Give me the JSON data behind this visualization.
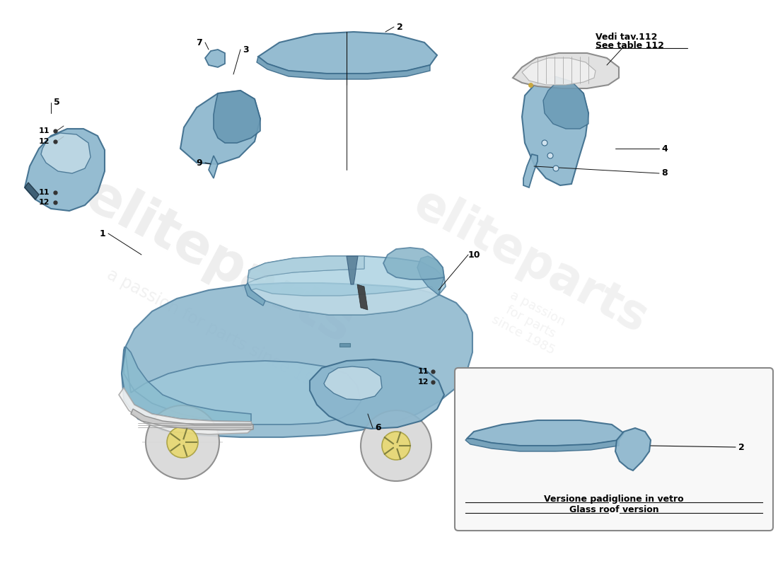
{
  "bg_color": "#ffffff",
  "part_color": "#8ab5cc",
  "part_edge_color": "#3a6a8a",
  "car_body_color": "#8ab5cc",
  "car_body_edge": "#4a7a9a",
  "car_window_color": "#c8dde8",
  "car_wheel_color": "#d8d8d8",
  "car_rim_color": "#e8d870",
  "car_light_color": "#e0e0e0",
  "line_color": "#111111",
  "text_color": "#000000",
  "box_color": "#f8f8f8",
  "box_edge": "#888888",
  "watermark_color": "#dddddd",
  "vedi_text": [
    "Vedi tav.112",
    "See table 112"
  ],
  "glass_text1": "Versione padiglione in vetro",
  "glass_text2": "Glass roof version",
  "number_labels": [
    "1",
    "2",
    "3",
    "4",
    "5",
    "6",
    "7",
    "8",
    "9",
    "10",
    "11",
    "12"
  ]
}
